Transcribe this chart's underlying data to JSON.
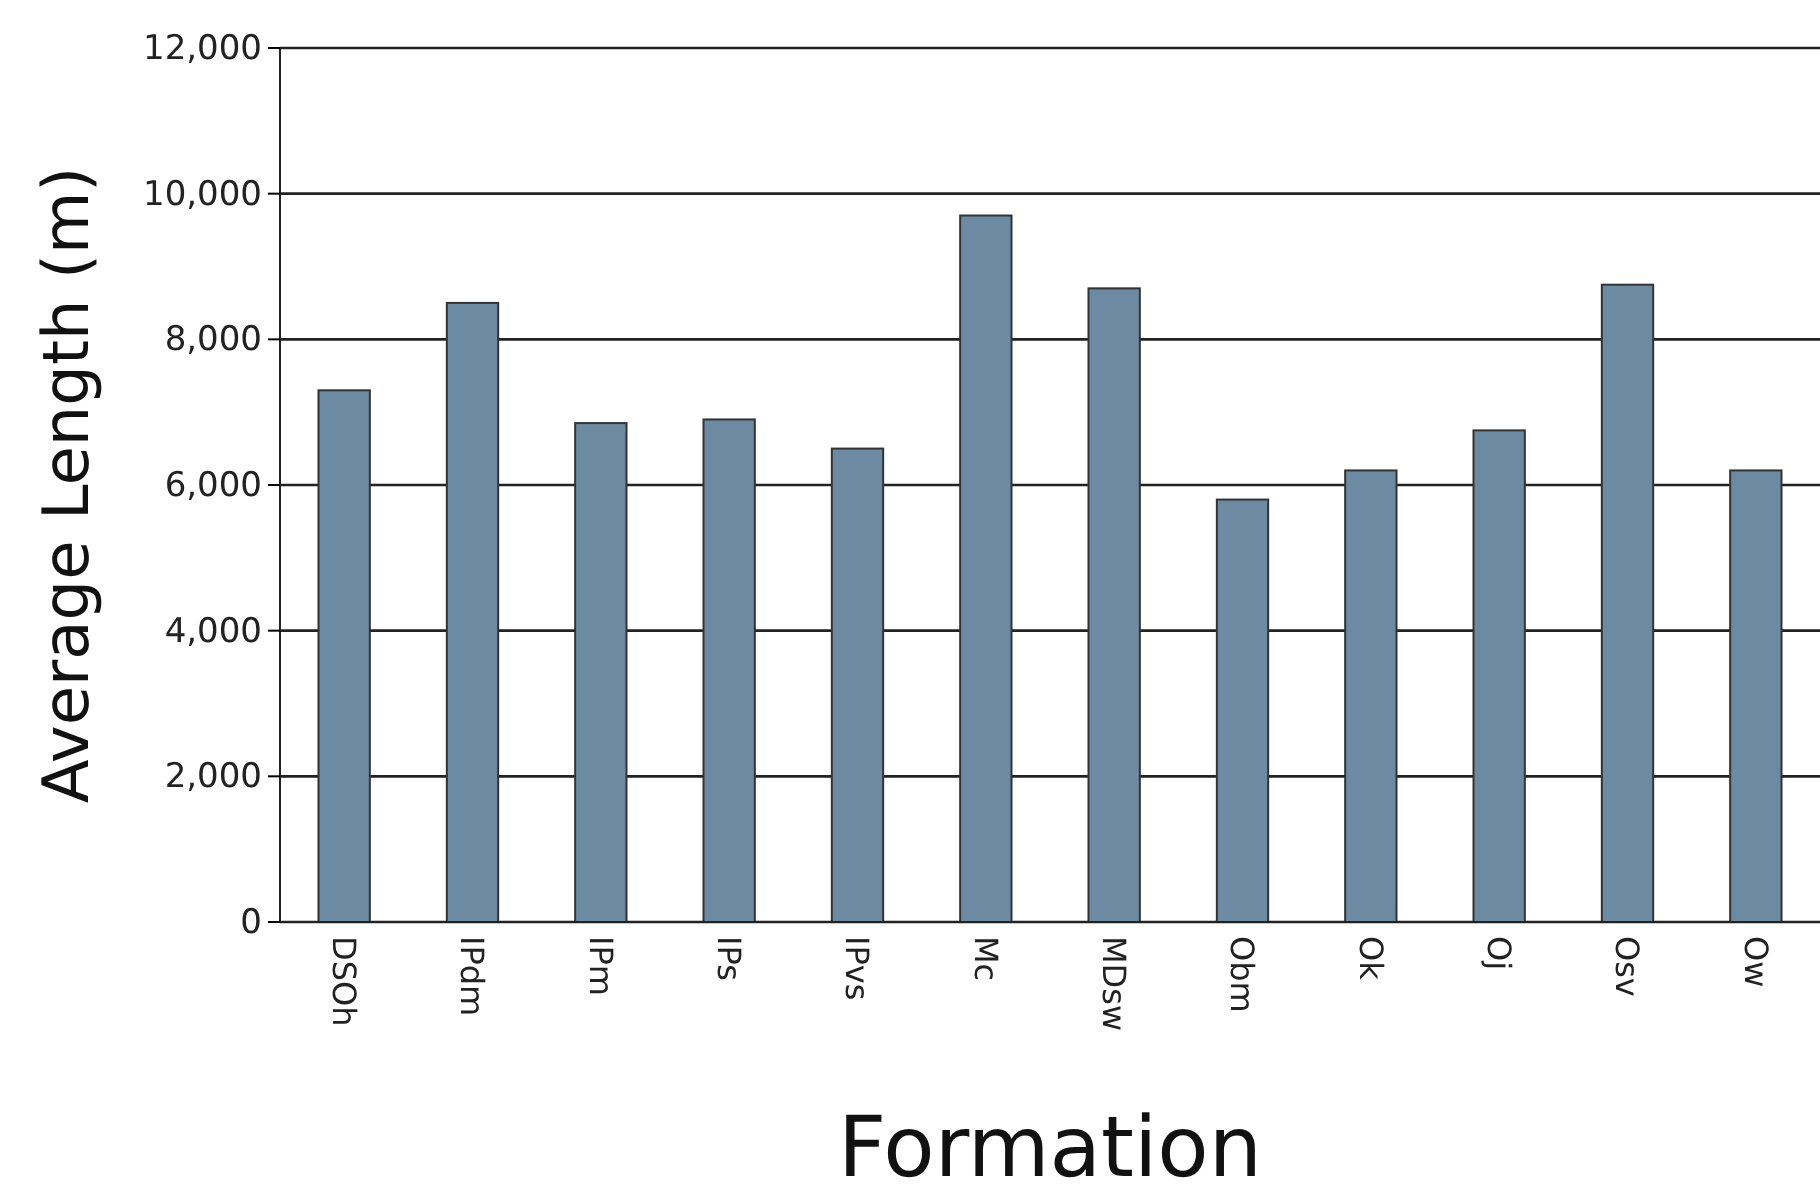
{
  "chart_data": {
    "type": "bar",
    "xlabel": "Formation",
    "ylabel": "Average Length (m)",
    "categories": [
      "DSOh",
      "IPdm",
      "IPm",
      "IPs",
      "IPvs",
      "Mc",
      "MDsw",
      "Obm",
      "Ok",
      "Oj",
      "Osv",
      "Ow"
    ],
    "values": [
      7300,
      8500,
      6850,
      6900,
      6500,
      9700,
      8700,
      5800,
      6200,
      6750,
      8750,
      6200
    ],
    "color": "#6d8aa3",
    "ylim": [
      0,
      12000
    ],
    "yticks": [
      {
        "value": 0,
        "label": "0"
      },
      {
        "value": 2000,
        "label": "2,000"
      },
      {
        "value": 4000,
        "label": "4,000"
      },
      {
        "value": 6000,
        "label": "6,000"
      },
      {
        "value": 8000,
        "label": "8,000"
      },
      {
        "value": 10000,
        "label": "10,000"
      },
      {
        "value": 12000,
        "label": "12,000"
      }
    ],
    "grid": "y"
  }
}
